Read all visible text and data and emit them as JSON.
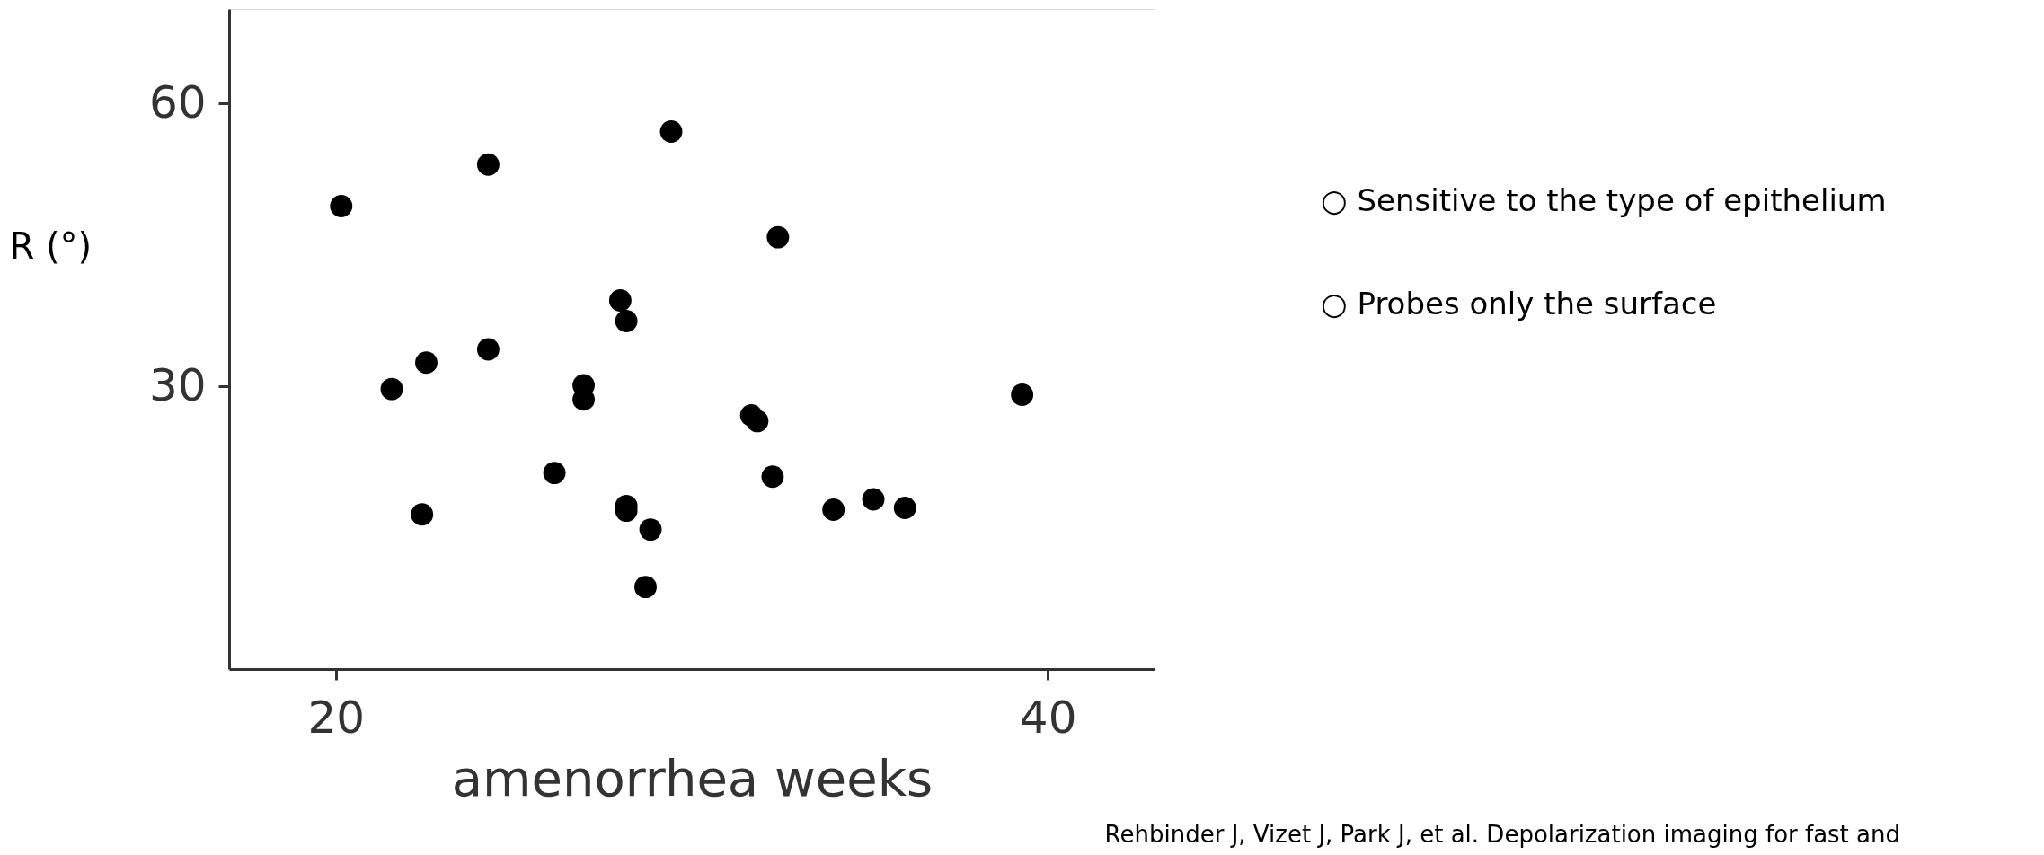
{
  "chart_data": {
    "type": "scatter",
    "xlabel": "amenorrhea weeks",
    "ylabel": "R (°)",
    "xlim": [
      17,
      43
    ],
    "ylim": [
      0,
      70
    ],
    "xticks": [
      20,
      40
    ],
    "yticks": [
      30,
      60
    ],
    "grid": false,
    "marker": "circle",
    "series": [
      {
        "color": "#000000",
        "x": [
          20.15,
          24.28,
          29.42,
          32.42,
          27.99,
          28.16,
          24.28,
          22.54,
          21.57,
          26.96,
          26.96,
          39.28,
          31.67,
          31.84,
          26.14,
          32.27,
          22.42,
          28.16,
          28.16,
          28.84,
          33.98,
          35.1,
          35.99,
          28.7
        ],
        "values": [
          49.1,
          53.5,
          57.0,
          45.8,
          39.1,
          36.9,
          33.9,
          32.5,
          29.7,
          30.1,
          28.6,
          29.1,
          26.9,
          26.3,
          20.8,
          20.4,
          16.4,
          17.3,
          16.8,
          14.8,
          16.9,
          18.0,
          17.1,
          8.7
        ]
      }
    ],
    "annotations": [
      "○  Sensitive to the type of epithelium",
      "○  Probes only the surface",
      "Rehbinder J, Vizet J, Park J, et al. Depolarization imaging for fast and"
    ]
  }
}
